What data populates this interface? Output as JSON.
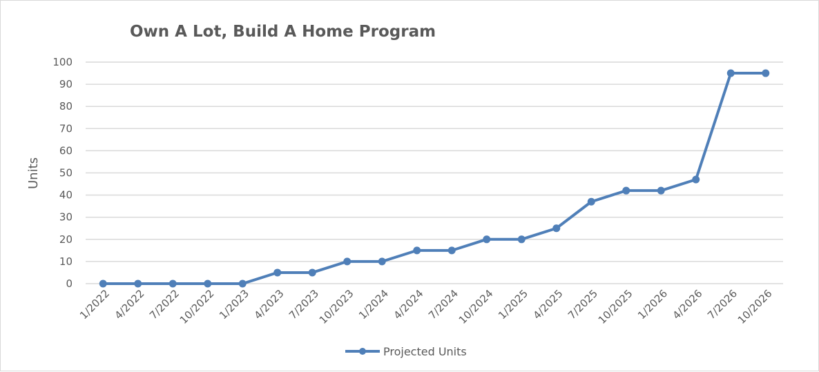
{
  "chart_data": {
    "type": "line",
    "title": "Own A Lot, Build A Home Program",
    "ylabel": "Units",
    "xlabel": "",
    "ylim": [
      0,
      100
    ],
    "yticks": [
      0,
      10,
      20,
      30,
      40,
      50,
      60,
      70,
      80,
      90,
      100
    ],
    "categories": [
      "1/2022",
      "4/2022",
      "7/2022",
      "10/2022",
      "1/2023",
      "4/2023",
      "7/2023",
      "10/2023",
      "1/2024",
      "4/2024",
      "7/2024",
      "10/2024",
      "1/2025",
      "4/2025",
      "7/2025",
      "10/2025",
      "1/2026",
      "4/2026",
      "7/2026",
      "10/2026"
    ],
    "series": [
      {
        "name": "Projected Units",
        "color": "#4f7fb8",
        "values": [
          0,
          0,
          0,
          0,
          0,
          5,
          5,
          10,
          10,
          15,
          15,
          20,
          20,
          25,
          37,
          42,
          42,
          47,
          95,
          95
        ]
      }
    ],
    "grid": true,
    "legend_position": "bottom"
  }
}
